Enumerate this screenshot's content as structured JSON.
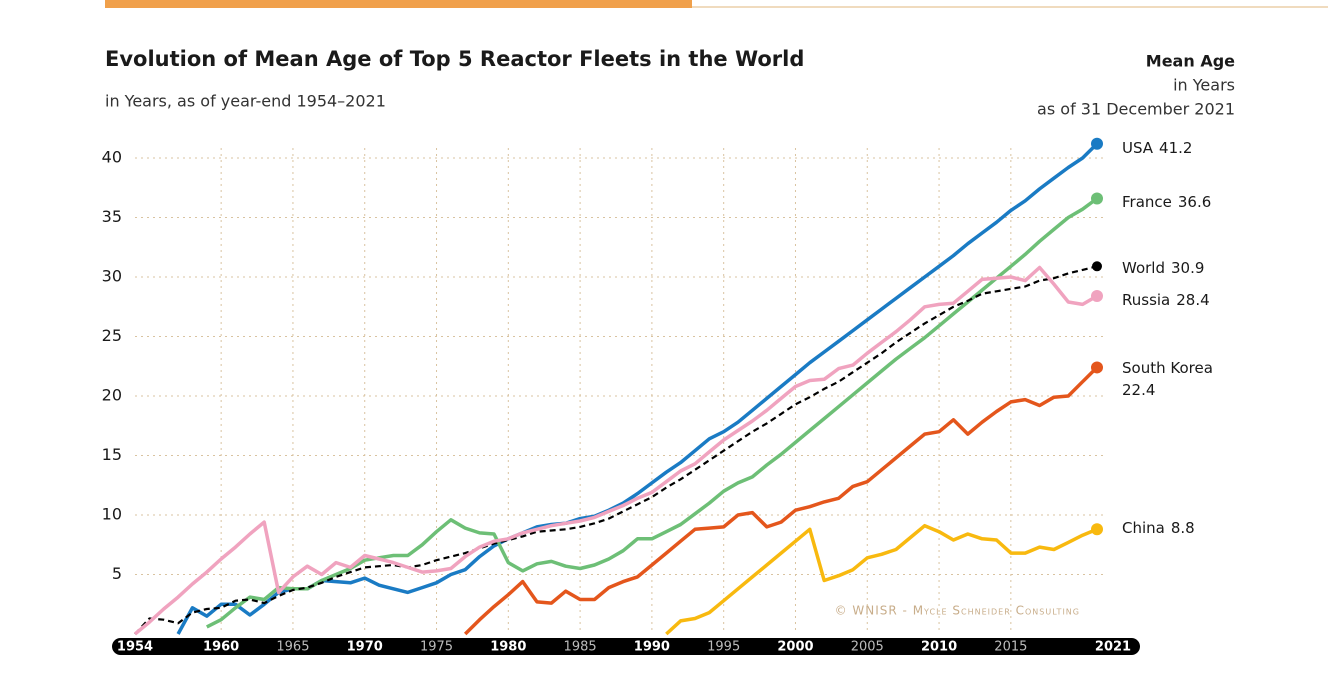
{
  "chart_data": {
    "type": "line",
    "title": "Evolution of Mean Age of Top 5 Reactor Fleets in the World",
    "subtitle": "in Years, as of year-end 1954–2021",
    "side_title": "Mean Age",
    "side_subtitle_1": "in Years",
    "side_subtitle_2": "as of 31 December 2021",
    "credit": "© WNISR - Mycle Schneider Consulting",
    "x": [
      1954,
      1955,
      1956,
      1957,
      1958,
      1959,
      1960,
      1961,
      1962,
      1963,
      1964,
      1965,
      1966,
      1967,
      1968,
      1969,
      1970,
      1971,
      1972,
      1973,
      1974,
      1975,
      1976,
      1977,
      1978,
      1979,
      1980,
      1981,
      1982,
      1983,
      1984,
      1985,
      1986,
      1987,
      1988,
      1989,
      1990,
      1991,
      1992,
      1993,
      1994,
      1995,
      1996,
      1997,
      1998,
      1999,
      2000,
      2001,
      2002,
      2003,
      2004,
      2005,
      2006,
      2007,
      2008,
      2009,
      2010,
      2011,
      2012,
      2013,
      2014,
      2015,
      2016,
      2017,
      2018,
      2019,
      2020,
      2021
    ],
    "xlim": [
      1954,
      2021
    ],
    "xticks": [
      1954,
      1960,
      1965,
      1970,
      1975,
      1980,
      1985,
      1990,
      1995,
      2000,
      2005,
      2010,
      2015,
      2021
    ],
    "ylim": [
      0,
      40
    ],
    "yticks": [
      5,
      10,
      15,
      20,
      25,
      30,
      35,
      40
    ],
    "grid": true,
    "series": [
      {
        "name": "USA",
        "color": "#1a7bc4",
        "values": [
          null,
          null,
          null,
          0,
          2.2,
          1.5,
          2.5,
          2.5,
          1.6,
          2.5,
          3.5,
          3.8,
          3.8,
          4.5,
          4.4,
          4.3,
          4.7,
          4.1,
          3.8,
          3.5,
          3.9,
          4.3,
          5,
          5.4,
          6.5,
          7.4,
          8,
          8.5,
          9,
          9.2,
          9.3,
          9.7,
          9.9,
          10.4,
          11,
          11.8,
          12.7,
          13.6,
          14.4,
          15.4,
          16.4,
          17,
          17.8,
          18.8,
          19.8,
          20.8,
          21.8,
          22.8,
          23.7,
          24.6,
          25.5,
          26.4,
          27.3,
          28.2,
          29.1,
          30,
          30.9,
          31.8,
          32.8,
          33.7,
          34.6,
          35.6,
          36.4,
          37.4,
          38.3,
          39.2,
          40,
          41.2
        ]
      },
      {
        "name": "France",
        "color": "#6dbf76",
        "values": [
          null,
          null,
          null,
          null,
          null,
          0.6,
          1.2,
          2.2,
          3.1,
          2.9,
          3.9,
          3.8,
          3.8,
          4.5,
          5,
          5.5,
          6.2,
          6.4,
          6.6,
          6.6,
          7.5,
          8.6,
          9.6,
          8.9,
          8.5,
          8.4,
          6,
          5.3,
          5.9,
          6.1,
          5.7,
          5.5,
          5.8,
          6.3,
          7,
          8,
          8,
          8.6,
          9.2,
          10.1,
          11,
          12,
          12.7,
          13.2,
          14.2,
          15.1,
          16.1,
          17.1,
          18.1,
          19.1,
          20.1,
          21.1,
          22.1,
          23.1,
          24,
          24.9,
          25.9,
          26.9,
          27.9,
          28.9,
          29.9,
          30.9,
          31.9,
          33,
          34,
          35,
          35.7,
          36.6
        ]
      },
      {
        "name": "World",
        "color": "#000000",
        "dashed": true,
        "values": [
          0,
          1.3,
          1.2,
          0.9,
          1.8,
          2.1,
          2.2,
          2.8,
          2.9,
          2.6,
          3.2,
          3.7,
          3.9,
          4.3,
          4.8,
          5.2,
          5.6,
          5.7,
          5.8,
          5.6,
          5.8,
          6.2,
          6.5,
          6.8,
          7.2,
          7.6,
          7.9,
          8.2,
          8.6,
          8.7,
          8.8,
          9,
          9.3,
          9.7,
          10.3,
          10.9,
          11.5,
          12.3,
          13,
          13.8,
          14.6,
          15.4,
          16.2,
          17,
          17.7,
          18.5,
          19.3,
          19.9,
          20.6,
          21.2,
          22,
          22.8,
          23.6,
          24.5,
          25.3,
          26.1,
          26.8,
          27.5,
          28,
          28.6,
          28.8,
          29,
          29.2,
          29.7,
          29.9,
          30.3,
          30.6,
          30.9
        ]
      },
      {
        "name": "Russia",
        "color": "#f0a3bf",
        "values": [
          0,
          1,
          2.1,
          3.1,
          4.2,
          5.2,
          6.3,
          7.3,
          8.4,
          9.4,
          3.5,
          4.8,
          5.7,
          5,
          6,
          5.6,
          6.6,
          6.3,
          6,
          5.6,
          5.2,
          5.3,
          5.5,
          6.5,
          7.3,
          7.8,
          8,
          8.5,
          8.8,
          9.1,
          9.3,
          9.5,
          9.8,
          10.3,
          10.8,
          11.4,
          11.9,
          12.8,
          13.7,
          14.3,
          15.3,
          16.3,
          17.1,
          17.9,
          18.8,
          19.8,
          20.8,
          21.3,
          21.4,
          22.3,
          22.6,
          23.6,
          24.5,
          25.4,
          26.4,
          27.5,
          27.7,
          27.8,
          28.8,
          29.8,
          29.9,
          30,
          29.7,
          30.8,
          29.4,
          27.9,
          27.7,
          28.4
        ]
      },
      {
        "name": "South Korea",
        "color": "#e4561c",
        "values": [
          null,
          null,
          null,
          null,
          null,
          null,
          null,
          null,
          null,
          null,
          null,
          null,
          null,
          null,
          null,
          null,
          null,
          null,
          null,
          null,
          null,
          null,
          null,
          0,
          1.2,
          2.3,
          3.3,
          4.4,
          2.7,
          2.6,
          3.6,
          2.9,
          2.9,
          3.9,
          4.4,
          4.8,
          5.8,
          6.8,
          7.8,
          8.8,
          8.9,
          9,
          10,
          10.2,
          9,
          9.4,
          10.4,
          10.7,
          11.1,
          11.4,
          12.4,
          12.8,
          13.8,
          14.8,
          15.8,
          16.8,
          17,
          18,
          16.8,
          17.8,
          18.7,
          19.5,
          19.7,
          19.2,
          19.9,
          20,
          21.2,
          22.4
        ]
      },
      {
        "name": "China",
        "color": "#f8b90f",
        "values": [
          null,
          null,
          null,
          null,
          null,
          null,
          null,
          null,
          null,
          null,
          null,
          null,
          null,
          null,
          null,
          null,
          null,
          null,
          null,
          null,
          null,
          null,
          null,
          null,
          null,
          null,
          null,
          null,
          null,
          null,
          null,
          null,
          null,
          null,
          null,
          null,
          null,
          0,
          1.1,
          1.3,
          1.8,
          2.8,
          3.8,
          4.8,
          5.8,
          6.8,
          7.8,
          8.8,
          4.5,
          4.9,
          5.4,
          6.4,
          6.7,
          7.1,
          8.1,
          9.1,
          8.6,
          7.9,
          8.4,
          8,
          7.9,
          6.8,
          6.8,
          7.3,
          7.1,
          7.7,
          8.3,
          8.8
        ]
      }
    ]
  }
}
